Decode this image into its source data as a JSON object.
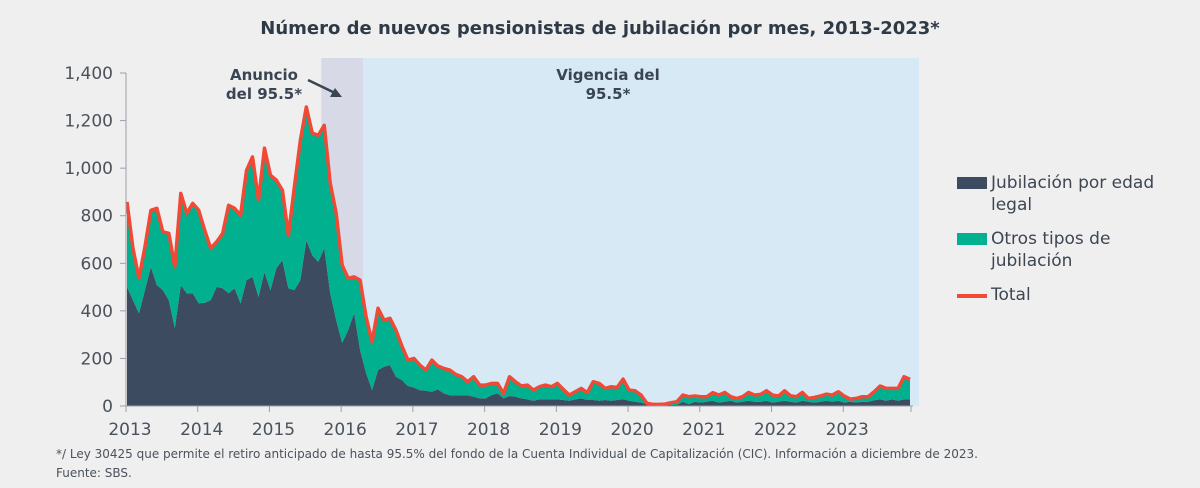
{
  "chart_data": {
    "type": "area",
    "stacked": true,
    "title": "Número de nuevos pensionistas de jubilación por mes, 2013-2023*",
    "xlabel": "",
    "ylabel": "",
    "frequency": "monthly",
    "x_range": [
      "2013-01",
      "2023-12"
    ],
    "x_ticks": [
      "2013",
      "2014",
      "2015",
      "2016",
      "2017",
      "2018",
      "2019",
      "2020",
      "2021",
      "2022",
      "2023"
    ],
    "y_ticks": [
      "0",
      "200",
      "400",
      "600",
      "800",
      "1,000",
      "1,200",
      "1,400"
    ],
    "ylim": [
      0,
      1400
    ],
    "grid": false,
    "legend_position": "right",
    "series": [
      {
        "name": "Jubilación por edad legal",
        "type": "area",
        "color": "#3d4b60",
        "values": [
          501,
          445,
          390,
          487,
          585,
          508,
          487,
          445,
          328,
          508,
          474,
          474,
          432,
          434,
          445,
          501,
          495,
          474,
          495,
          432,
          529,
          543,
          459,
          564,
          487,
          580,
          613,
          495,
          487,
          529,
          697,
          634,
          606,
          663,
          474,
          361,
          265,
          319,
          390,
          235,
          139,
          67,
          151,
          165,
          172,
          123,
          109,
          84,
          78,
          67,
          64,
          60,
          70,
          53,
          45,
          45,
          45,
          45,
          39,
          32,
          32,
          46,
          53,
          32,
          42,
          39,
          32,
          28,
          22,
          28,
          28,
          28,
          28,
          25,
          22,
          28,
          32,
          25,
          25,
          22,
          25,
          22,
          25,
          29,
          22,
          18,
          14,
          8,
          4,
          4,
          4,
          4,
          4,
          18,
          8,
          18,
          14,
          18,
          22,
          14,
          18,
          22,
          14,
          18,
          22,
          18,
          18,
          22,
          14,
          18,
          22,
          18,
          14,
          22,
          18,
          14,
          18,
          22,
          18,
          22,
          14,
          18,
          14,
          18,
          18,
          24,
          28,
          22,
          28,
          22,
          28,
          28
        ]
      },
      {
        "name": "Otros tipos de jubilación",
        "type": "area",
        "color": "#00b08f",
        "values": [
          357,
          218,
          147,
          182,
          238,
          323,
          245,
          281,
          257,
          386,
          336,
          378,
          391,
          305,
          218,
          189,
          231,
          370,
          336,
          370,
          462,
          504,
          406,
          520,
          483,
          369,
          294,
          223,
          434,
          588,
          560,
          513,
          532,
          517,
          463,
          449,
          327,
          218,
          153,
          294,
          236,
          203,
          260,
          196,
          197,
          196,
          143,
          109,
          122,
          105,
          87,
          133,
          98,
          105,
          106,
          88,
          78,
          57,
          84,
          56,
          56,
          49,
          42,
          21,
          81,
          63,
          52,
          60,
          45,
          53,
          60,
          53,
          67,
          45,
          24,
          32,
          42,
          31,
          77,
          73,
          49,
          59,
          53,
          84,
          45,
          46,
          32,
          3,
          3,
          3,
          4,
          10,
          14,
          28,
          31,
          24,
          25,
          21,
          34,
          32,
          39,
          17,
          18,
          21,
          35,
          28,
          31,
          42,
          32,
          24,
          42,
          25,
          25,
          35,
          14,
          22,
          24,
          28,
          28,
          38,
          28,
          11,
          18,
          21,
          21,
          36,
          56,
          52,
          46,
          52,
          95,
          84
        ]
      },
      {
        "name": "Total",
        "type": "line",
        "color": "#f04a36",
        "values": [
          858,
          663,
          537,
          669,
          823,
          831,
          732,
          726,
          585,
          894,
          810,
          852,
          823,
          739,
          663,
          690,
          726,
          844,
          831,
          802,
          991,
          1047,
          865,
          1084,
          970,
          949,
          907,
          718,
          921,
          1117,
          1257,
          1147,
          1138,
          1180,
          937,
          810,
          592,
          537,
          543,
          529,
          375,
          270,
          411,
          361,
          369,
          319,
          252,
          193,
          200,
          172,
          151,
          193,
          168,
          158,
          151,
          133,
          123,
          102,
          123,
          88,
          88,
          95,
          95,
          53,
          123,
          102,
          84,
          88,
          67,
          81,
          88,
          81,
          95,
          70,
          46,
          60,
          74,
          56,
          102,
          95,
          74,
          81,
          78,
          113,
          67,
          64,
          46,
          11,
          7,
          7,
          8,
          14,
          18,
          46,
          39,
          42,
          39,
          39,
          56,
          46,
          57,
          39,
          32,
          39,
          57,
          46,
          49,
          64,
          46,
          42,
          64,
          43,
          39,
          57,
          32,
          36,
          42,
          50,
          46,
          60,
          42,
          29,
          32,
          39,
          39,
          60,
          84,
          74,
          74,
          74,
          123,
          112
        ]
      }
    ],
    "shaded_regions": [
      {
        "label": "Anuncio del 95.5*",
        "start": "2015-10",
        "end": "2016-04",
        "color": "#d7dae6"
      },
      {
        "label": "Vigencia del 95.5*",
        "start": "2016-05",
        "end": "2024-01",
        "color": "#d8e9f6"
      }
    ],
    "annotations": {
      "anuncio_line1": "Anuncio",
      "anuncio_line2": "del 95.5*",
      "vigencia_line1": "Vigencia del",
      "vigencia_line2": "95.5*"
    }
  },
  "legend": {
    "items": [
      "Jubilación por edad legal",
      "Otros tipos de jubilación",
      "Total"
    ]
  },
  "footnote": {
    "note": "*/ Ley 30425 que permite el retiro anticipado de hasta 95.5% del fondo de la Cuenta Individual de Capitalización (CIC). Información a diciembre de 2023.",
    "source": "Fuente: SBS."
  }
}
